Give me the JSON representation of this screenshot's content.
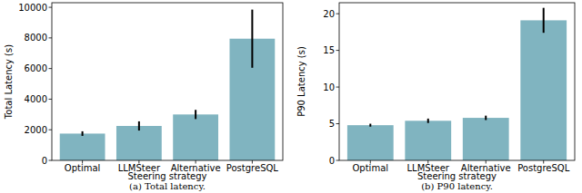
{
  "chart_data": [
    {
      "type": "bar",
      "xlabel": "Steering strategy",
      "ylabel": "Total Latency (s)",
      "caption": "(a) Total latency.",
      "categories": [
        "Optimal",
        "LLMSteer",
        "Alternative",
        "PostgreSQL"
      ],
      "values": [
        1750,
        2250,
        3000,
        7950
      ],
      "errors": [
        150,
        300,
        300,
        1900
      ],
      "color": "#80b4c0",
      "ylim": [
        0,
        10300
      ],
      "yticks": [
        0,
        2000,
        4000,
        6000,
        8000,
        10000
      ]
    },
    {
      "type": "bar",
      "xlabel": "Steering strategy",
      "ylabel": "P90 Latency (s)",
      "caption": "(b) P90 latency.",
      "categories": [
        "Optimal",
        "LLMSteer",
        "Alternative",
        "PostgreSQL"
      ],
      "values": [
        4.8,
        5.4,
        5.8,
        19.1
      ],
      "errors": [
        0.2,
        0.3,
        0.3,
        1.7
      ],
      "color": "#80b4c0",
      "ylim": [
        0,
        21.5
      ],
      "yticks": [
        0,
        5,
        10,
        15,
        20
      ]
    }
  ]
}
